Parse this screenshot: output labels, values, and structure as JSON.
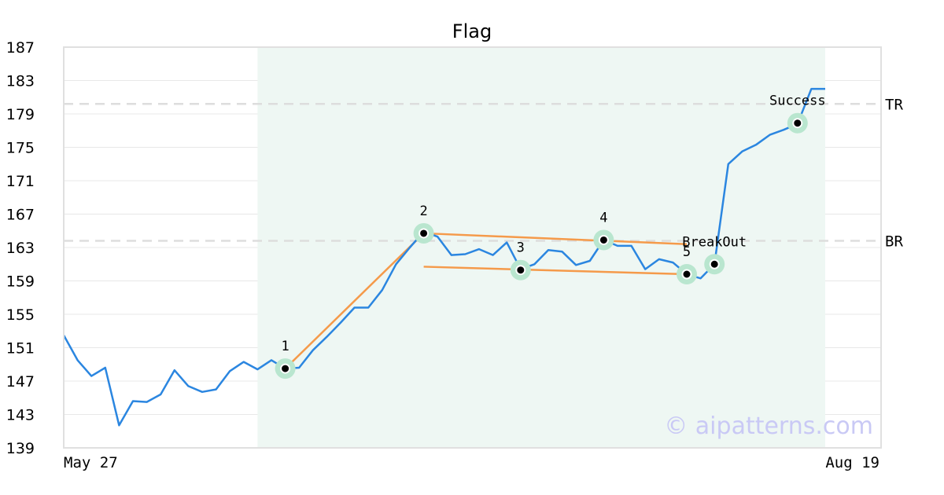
{
  "chart_data": {
    "type": "line",
    "title": "Flag",
    "xlabel": "",
    "ylabel": "",
    "x_tick_labels": [
      "May 27",
      "Aug 19"
    ],
    "y_ticks": [
      139,
      143,
      147,
      151,
      155,
      159,
      163,
      167,
      171,
      175,
      179,
      183,
      187
    ],
    "ylim": [
      139,
      187
    ],
    "grid": "horizontal",
    "series": [
      {
        "values": [
          152.5,
          149.5,
          147.6,
          148.6,
          141.7,
          144.6,
          144.5,
          145.4,
          148.3,
          146.4,
          145.7,
          146.0,
          148.2,
          149.3,
          148.4,
          149.5,
          148.5,
          148.6,
          150.7,
          152.3,
          154.0,
          155.8,
          155.8,
          157.9,
          161.0,
          163.0,
          164.9,
          164.3,
          162.1,
          162.2,
          162.8,
          162.1,
          163.6,
          160.4,
          161.0,
          162.7,
          162.5,
          160.9,
          161.4,
          163.9,
          163.2,
          163.2,
          160.4,
          161.6,
          161.2,
          159.8,
          159.3,
          161.0,
          173.0,
          174.5,
          175.3,
          176.5,
          177.1,
          177.8,
          182.0,
          182.0
        ],
        "color": "#2b86e0"
      }
    ],
    "horizontal_levels": [
      {
        "label": "TR",
        "value": 180.2
      },
      {
        "label": "BR",
        "value": 163.8
      }
    ],
    "pattern_points": [
      {
        "label": "1",
        "index": 16,
        "value": 148.5
      },
      {
        "label": "2",
        "index": 26,
        "value": 164.7
      },
      {
        "label": "3",
        "index": 33,
        "value": 160.3
      },
      {
        "label": "4",
        "index": 39,
        "value": 163.9
      },
      {
        "label": "5",
        "index": 45,
        "value": 159.8
      },
      {
        "label": "BreakOut",
        "index": 47,
        "value": 161.0
      },
      {
        "label": "Success",
        "index": 53,
        "value": 177.9
      }
    ],
    "pattern_lines": [
      {
        "from": [
          16,
          148.5
        ],
        "to": [
          26,
          164.7
        ]
      },
      {
        "from": [
          26,
          164.7
        ],
        "to": [
          45,
          163.4
        ]
      },
      {
        "from": [
          26,
          160.7
        ],
        "to": [
          45,
          159.8
        ]
      }
    ],
    "highlight_range": [
      14,
      55
    ],
    "colors": {
      "line": "#2b86e0",
      "pattern": "#f59a4a",
      "highlight": "#eef7f3",
      "marker_halo": "#b9e6cf",
      "level": "#dddddd"
    },
    "watermark": "© aipatterns.com"
  }
}
